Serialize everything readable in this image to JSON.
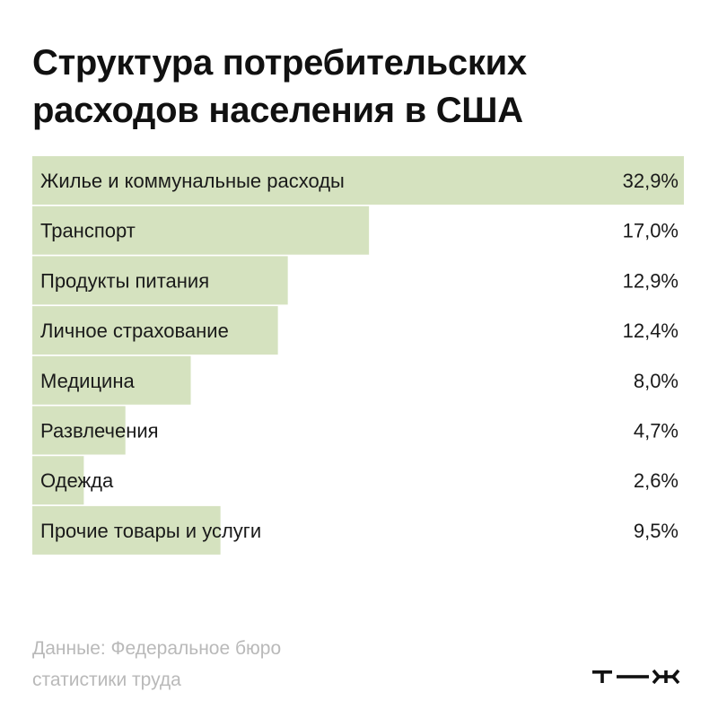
{
  "title_line1": "Структура потребительских",
  "title_line2": "расходов населения в США",
  "source_line1": "Данные: Федеральное бюро",
  "source_line2": "статистики труда",
  "brand": "т—ж",
  "bar_color": "#d5e2bf",
  "chart_data": {
    "type": "bar",
    "orientation": "horizontal",
    "title": "Структура потребительских расходов населения в США",
    "categories": [
      "Жилье и коммунальные расходы",
      "Транспорт",
      "Продукты питания",
      "Личное страхование",
      "Медицина",
      "Развлечения",
      "Одежда",
      "Прочие товары и услуги"
    ],
    "values": [
      32.9,
      17.0,
      12.9,
      12.4,
      8.0,
      4.7,
      2.6,
      9.5
    ],
    "value_labels": [
      "32,9%",
      "17,0%",
      "12,9%",
      "12,4%",
      "8,0%",
      "4,7%",
      "2,6%",
      "9,5%"
    ],
    "unit": "%",
    "xlim": [
      0,
      32.9
    ],
    "grid": false,
    "legend": "none"
  }
}
